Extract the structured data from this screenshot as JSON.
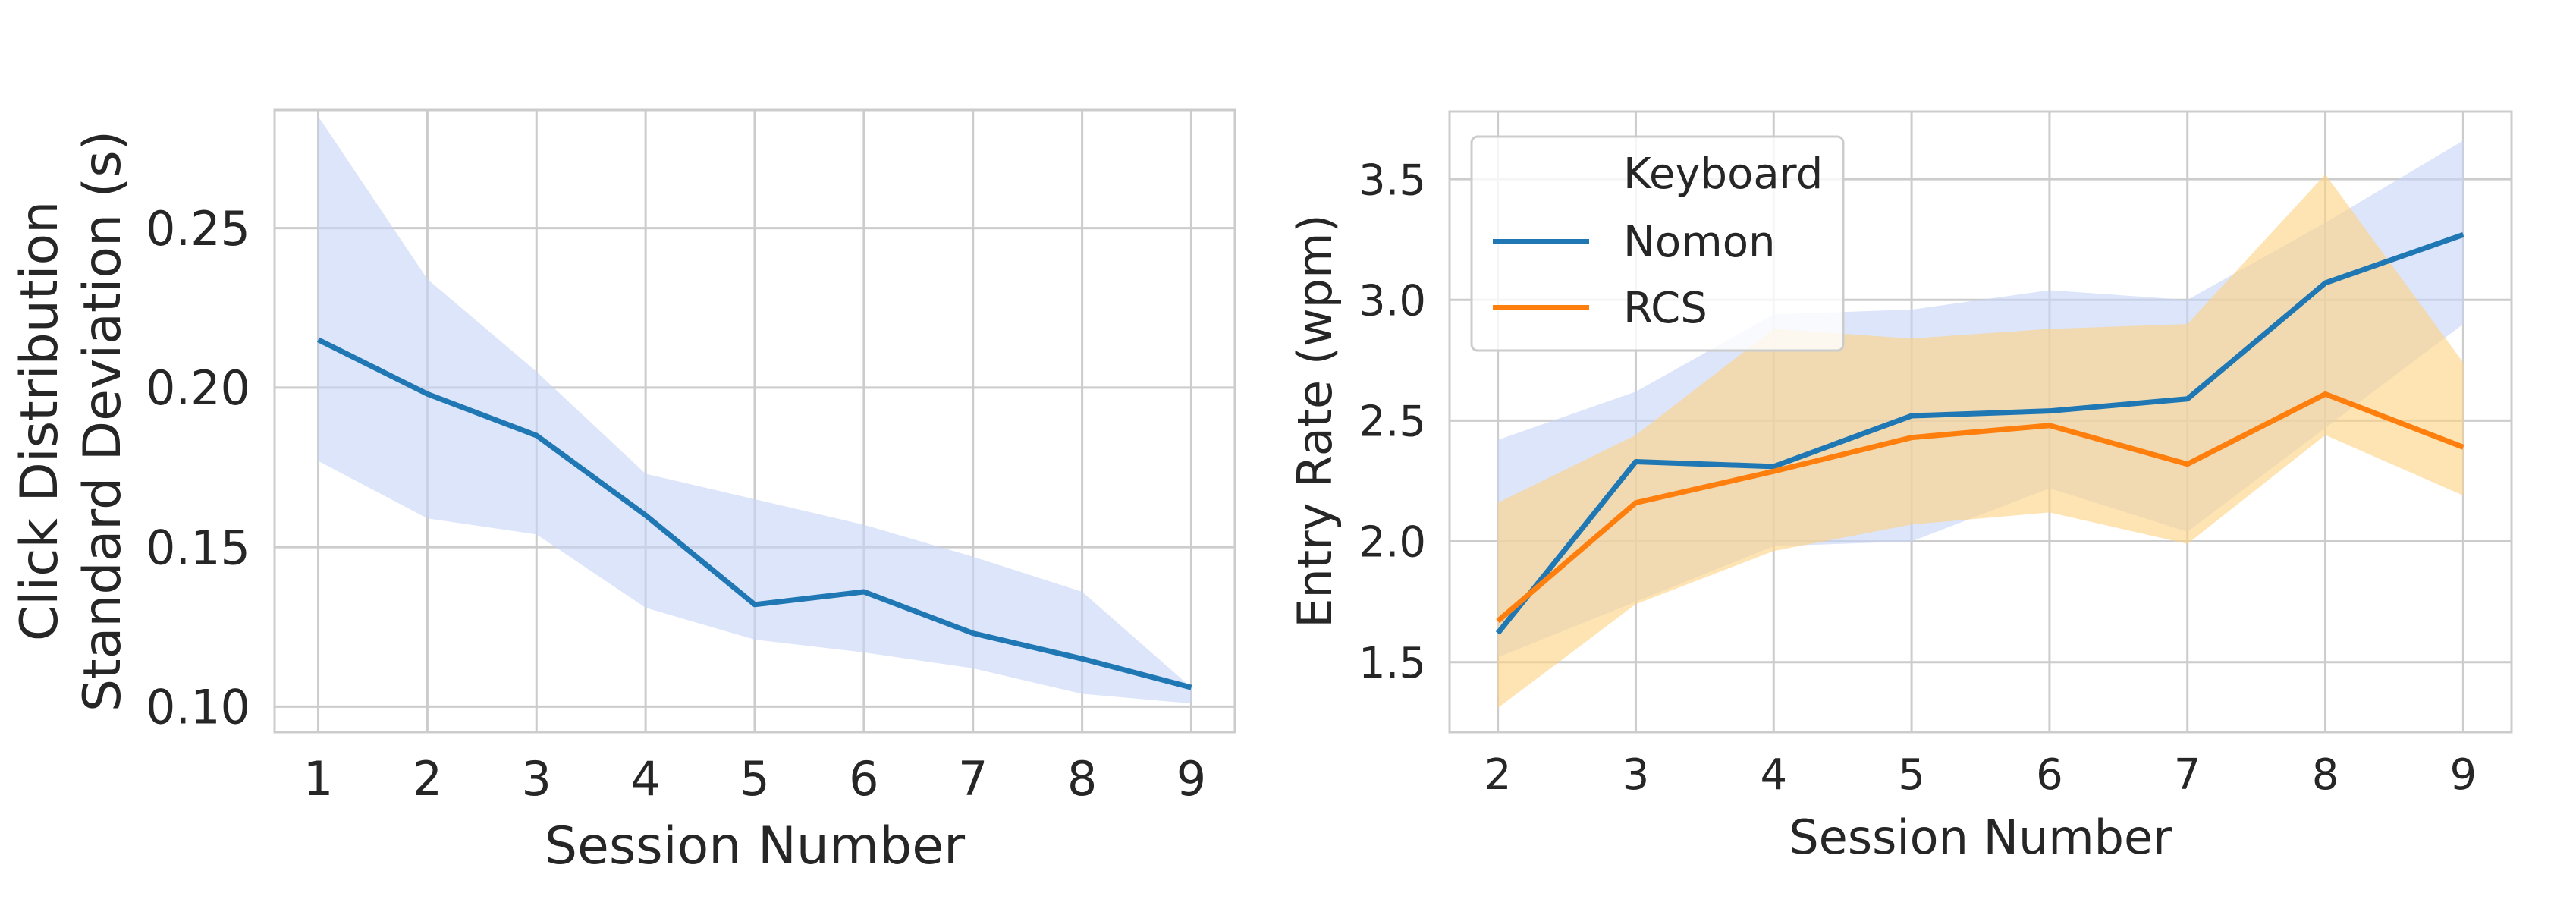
{
  "chart_data": [
    {
      "type": "line",
      "xlabel": "Session Number",
      "ylabel_lines": [
        "Click Distribution",
        "Standard Deviation (s)"
      ],
      "x": [
        1,
        2,
        3,
        4,
        5,
        6,
        7,
        8,
        9
      ],
      "xticks": [
        "1",
        "2",
        "3",
        "4",
        "5",
        "6",
        "7",
        "8",
        "9"
      ],
      "yticks": [
        "0.10",
        "0.15",
        "0.20",
        "0.25"
      ],
      "xlim": [
        0.6,
        9.4
      ],
      "ylim": [
        0.092,
        0.287
      ],
      "grid": true,
      "series": [
        {
          "color": "#1f77b4",
          "band_color": "#c5d3f6",
          "values": [
            0.215,
            0.198,
            0.185,
            0.16,
            0.132,
            0.136,
            0.123,
            0.115,
            0.106
          ],
          "lower": [
            0.177,
            0.159,
            0.154,
            0.131,
            0.121,
            0.117,
            0.112,
            0.104,
            0.101
          ],
          "upper": [
            0.285,
            0.234,
            0.205,
            0.173,
            0.165,
            0.157,
            0.147,
            0.136,
            0.106
          ]
        }
      ]
    },
    {
      "type": "line",
      "xlabel": "Session Number",
      "ylabel": "Entry Rate (wpm)",
      "x": [
        2,
        3,
        4,
        5,
        6,
        7,
        8,
        9
      ],
      "xticks": [
        "2",
        "3",
        "4",
        "5",
        "6",
        "7",
        "8",
        "9"
      ],
      "yticks": [
        "1.5",
        "2.0",
        "2.5",
        "3.0",
        "3.5"
      ],
      "xlim": [
        1.65,
        9.35
      ],
      "ylim": [
        1.21,
        3.78
      ],
      "grid": true,
      "legend": {
        "position": "top-left",
        "title": "Keyboard"
      },
      "series": [
        {
          "name": "Nomon",
          "color": "#1f77b4",
          "band_color": "#c5d3f6",
          "values": [
            1.62,
            2.33,
            2.31,
            2.52,
            2.54,
            2.59,
            3.07,
            3.27
          ],
          "lower": [
            1.52,
            1.75,
            1.98,
            2.0,
            2.22,
            2.04,
            2.47,
            2.9
          ],
          "upper": [
            2.42,
            2.62,
            2.94,
            2.96,
            3.04,
            3.0,
            3.32,
            3.66
          ]
        },
        {
          "name": "RCS",
          "color": "#ff7f0e",
          "band_color": "#ffd280",
          "values": [
            1.67,
            2.16,
            2.29,
            2.43,
            2.48,
            2.32,
            2.61,
            2.39
          ],
          "lower": [
            1.31,
            1.74,
            1.96,
            2.07,
            2.12,
            1.99,
            2.44,
            2.19
          ],
          "upper": [
            2.16,
            2.44,
            2.88,
            2.84,
            2.88,
            2.9,
            3.52,
            2.74
          ]
        }
      ]
    }
  ]
}
